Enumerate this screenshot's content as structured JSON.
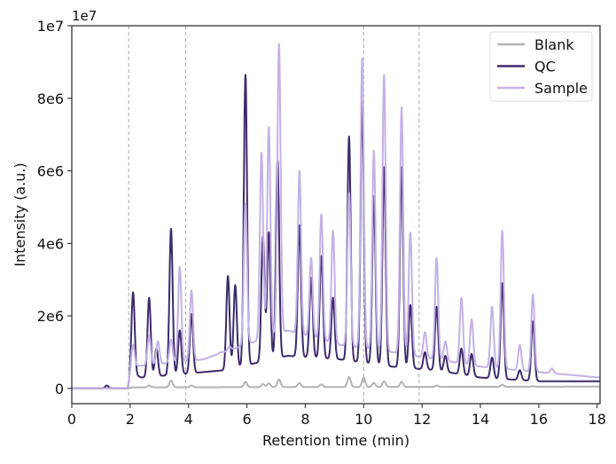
{
  "chart_data": {
    "type": "line",
    "title": "",
    "xlabel": "Retention time (min)",
    "ylabel": "Intensity (a.u.)",
    "y_offset_text": "1e7",
    "xlim": [
      0,
      18.1
    ],
    "ylim": [
      -420000,
      10000000
    ],
    "xticks": [
      0,
      2,
      4,
      6,
      8,
      10,
      12,
      14,
      16,
      18
    ],
    "xtick_labels": [
      "0",
      "2",
      "4",
      "6",
      "8",
      "10",
      "12",
      "14",
      "16",
      "18"
    ],
    "yticks": [
      0,
      2000000,
      4000000,
      6000000,
      8000000,
      10000000
    ],
    "ytick_labels": [
      "0",
      "2e6",
      "4e6",
      "6e6",
      "8e6",
      "1e7"
    ],
    "vertical_dashed_lines": [
      1.95,
      3.9,
      10.0,
      11.9
    ],
    "grid": false,
    "legend_placement": "top-right",
    "peak_sigma_min": 0.055,
    "series": [
      {
        "name": "Blank",
        "color": "#b3b3b3",
        "baseline": [
          [
            0,
            0
          ],
          [
            1.9,
            0
          ],
          [
            2.1,
            30000
          ],
          [
            18.1,
            50000
          ]
        ],
        "peaks": [
          [
            1.2,
            80000
          ],
          [
            2.65,
            80000
          ],
          [
            3.4,
            220000
          ],
          [
            4.1,
            80000
          ],
          [
            5.95,
            180000
          ],
          [
            6.55,
            120000
          ],
          [
            6.75,
            140000
          ],
          [
            7.1,
            250000
          ],
          [
            7.8,
            150000
          ],
          [
            8.55,
            110000
          ],
          [
            9.5,
            320000
          ],
          [
            10.0,
            300000
          ],
          [
            10.35,
            150000
          ],
          [
            10.7,
            200000
          ],
          [
            11.3,
            180000
          ],
          [
            12.5,
            80000
          ],
          [
            14.75,
            100000
          ],
          [
            15.8,
            60000
          ]
        ]
      },
      {
        "name": "QC",
        "color": "#3f2a6b",
        "baseline": [
          [
            0,
            0
          ],
          [
            1.9,
            0
          ],
          [
            2.05,
            400000
          ],
          [
            2.4,
            300000
          ],
          [
            4.5,
            450000
          ],
          [
            5.2,
            500000
          ],
          [
            7.4,
            900000
          ],
          [
            9.2,
            800000
          ],
          [
            11,
            600000
          ],
          [
            12.5,
            500000
          ],
          [
            14,
            300000
          ],
          [
            16,
            200000
          ],
          [
            18.1,
            200000
          ]
        ],
        "peaks": [
          [
            1.2,
            80000
          ],
          [
            2.1,
            2650000
          ],
          [
            2.65,
            2500000
          ],
          [
            2.9,
            1100000
          ],
          [
            3.4,
            4400000
          ],
          [
            3.7,
            1600000
          ],
          [
            4.1,
            2050000
          ],
          [
            5.35,
            3100000
          ],
          [
            5.6,
            2850000
          ],
          [
            5.95,
            8650000
          ],
          [
            6.55,
            4200000
          ],
          [
            6.75,
            4300000
          ],
          [
            7.05,
            6300000
          ],
          [
            7.8,
            4500000
          ],
          [
            8.2,
            3050000
          ],
          [
            8.55,
            3650000
          ],
          [
            8.95,
            2500000
          ],
          [
            9.5,
            6950000
          ],
          [
            9.95,
            7900000
          ],
          [
            10.35,
            5300000
          ],
          [
            10.7,
            6100000
          ],
          [
            11.3,
            6100000
          ],
          [
            11.6,
            2300000
          ],
          [
            12.1,
            1000000
          ],
          [
            12.5,
            2250000
          ],
          [
            12.8,
            900000
          ],
          [
            13.35,
            1100000
          ],
          [
            13.7,
            950000
          ],
          [
            14.4,
            850000
          ],
          [
            14.75,
            2900000
          ],
          [
            15.35,
            500000
          ],
          [
            15.8,
            1850000
          ]
        ]
      },
      {
        "name": "Sample",
        "color": "#c3b1e6",
        "baseline": [
          [
            0,
            0
          ],
          [
            1.9,
            0
          ],
          [
            2.05,
            600000
          ],
          [
            4.5,
            800000
          ],
          [
            5.2,
            1000000
          ],
          [
            7.4,
            1600000
          ],
          [
            9.2,
            1200000
          ],
          [
            11,
            1000000
          ],
          [
            12.5,
            800000
          ],
          [
            14,
            600000
          ],
          [
            16,
            450000
          ],
          [
            18.1,
            300000
          ]
        ],
        "peaks": [
          [
            2.1,
            1200000
          ],
          [
            2.65,
            1450000
          ],
          [
            2.95,
            1300000
          ],
          [
            3.4,
            1350000
          ],
          [
            3.7,
            3350000
          ],
          [
            4.1,
            2700000
          ],
          [
            5.1,
            1000000
          ],
          [
            5.4,
            1150000
          ],
          [
            5.95,
            5100000
          ],
          [
            6.5,
            6500000
          ],
          [
            6.75,
            7200000
          ],
          [
            7.1,
            9500000
          ],
          [
            7.8,
            6000000
          ],
          [
            8.2,
            3600000
          ],
          [
            8.55,
            4800000
          ],
          [
            8.95,
            4350000
          ],
          [
            9.5,
            5400000
          ],
          [
            9.95,
            9100000
          ],
          [
            10.35,
            6550000
          ],
          [
            10.7,
            8650000
          ],
          [
            11.3,
            7750000
          ],
          [
            11.6,
            4300000
          ],
          [
            12.1,
            1550000
          ],
          [
            12.5,
            3600000
          ],
          [
            12.8,
            1300000
          ],
          [
            13.35,
            2500000
          ],
          [
            13.7,
            1900000
          ],
          [
            14.4,
            2250000
          ],
          [
            14.75,
            4350000
          ],
          [
            15.35,
            1200000
          ],
          [
            15.8,
            2600000
          ],
          [
            16.45,
            550000
          ]
        ]
      }
    ]
  }
}
